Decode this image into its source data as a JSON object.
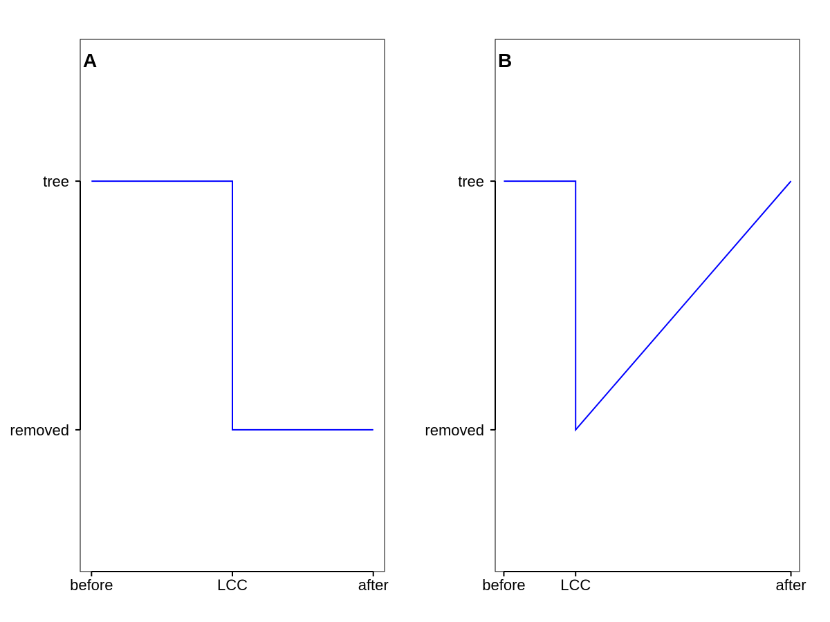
{
  "chart_data": [
    {
      "type": "line",
      "panel_label": "A",
      "line_shape": "step",
      "y_levels": [
        "removed",
        "tree"
      ],
      "x_ticks": [
        "before",
        "LCC",
        "after"
      ],
      "x_tick_values": [
        0,
        1,
        2
      ],
      "xlim": [
        -0.08,
        2.08
      ],
      "ylim": [
        -0.57,
        1.57
      ],
      "series": [
        {
          "color": "#0000ff",
          "points": [
            {
              "x": 0,
              "y": "tree"
            },
            {
              "x": 1,
              "y": "tree"
            },
            {
              "x": 1,
              "y": "removed"
            },
            {
              "x": 2,
              "y": "removed"
            }
          ]
        }
      ],
      "grid": false
    },
    {
      "type": "line",
      "panel_label": "B",
      "line_shape": "linear",
      "y_levels": [
        "removed",
        "tree"
      ],
      "x_ticks": [
        "before",
        "LCC",
        "after"
      ],
      "x_tick_values": [
        0,
        1,
        4
      ],
      "xlim": [
        -0.12,
        4.12
      ],
      "ylim": [
        -0.57,
        1.57
      ],
      "series": [
        {
          "color": "#0000ff",
          "points": [
            {
              "x": 0,
              "y": "tree"
            },
            {
              "x": 1,
              "y": "tree"
            },
            {
              "x": 1,
              "y": "removed"
            },
            {
              "x": 4,
              "y": "tree"
            }
          ]
        }
      ],
      "grid": false
    }
  ]
}
